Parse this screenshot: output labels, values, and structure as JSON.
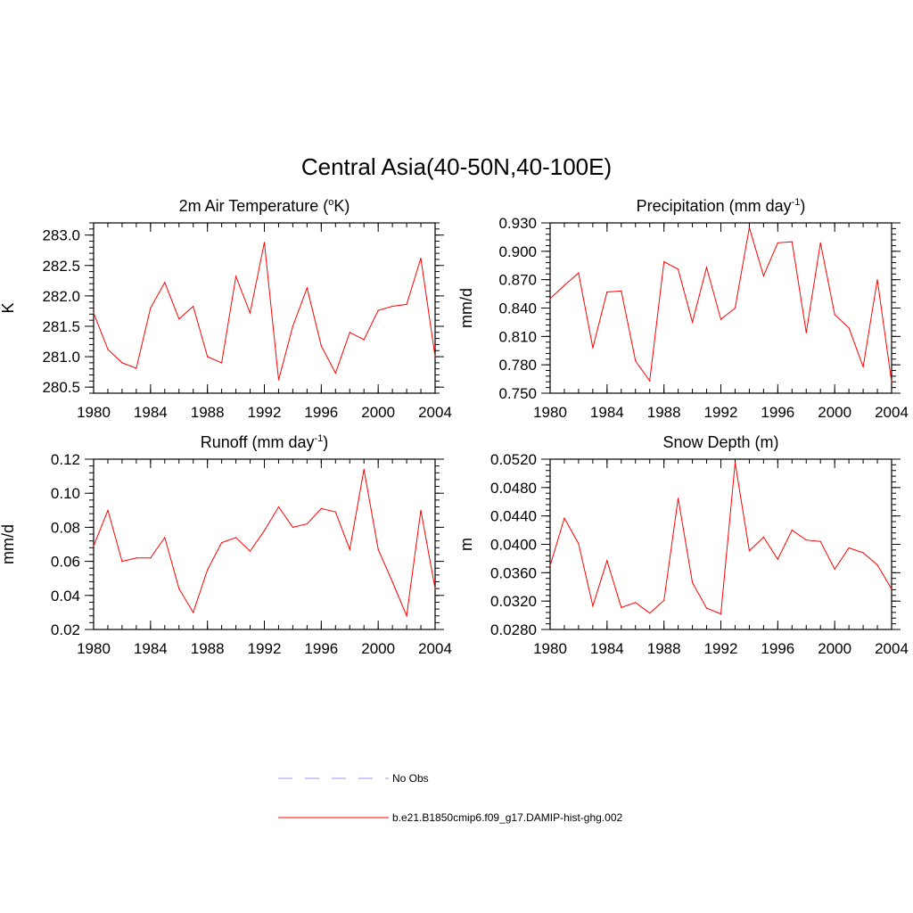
{
  "figure_title": "Central Asia(40-50N,40-100E)",
  "colors": {
    "model": "#ff0000",
    "obs": "#9999ff",
    "axis": "#000000"
  },
  "legend": [
    {
      "label": "No Obs",
      "style": "dashed",
      "color": "#9999ff"
    },
    {
      "label": "b.e21.B1850cmip6.f09_g17.DAMIP-hist-ghg.002",
      "style": "solid",
      "color": "#ff0000"
    }
  ],
  "chart_data": [
    {
      "type": "line",
      "title": "2m Air Temperature (",
      "title_sup": "o",
      "title_tail": "K)",
      "ylabel": "K",
      "xlim": [
        1980,
        2004
      ],
      "ylim": [
        280.4,
        283.2
      ],
      "xticks": [
        "1980",
        "1984",
        "1988",
        "1992",
        "1996",
        "2000",
        "2004"
      ],
      "yticks": [
        "280.5",
        "281.0",
        "281.5",
        "282.0",
        "282.5",
        "283.0"
      ],
      "minor_x": 1,
      "minor_y": 0.1,
      "series": [
        {
          "x": [
            1980,
            1981,
            1982,
            1983,
            1984,
            1985,
            1986,
            1987,
            1988,
            1989,
            1990,
            1991,
            1992,
            1993,
            1994,
            1995,
            1996,
            1997,
            1998,
            1999,
            2000,
            2001,
            2002,
            2003,
            2004
          ],
          "values": [
            281.72,
            281.12,
            280.9,
            280.81,
            281.8,
            282.22,
            281.62,
            281.83,
            281.0,
            280.9,
            282.32,
            281.72,
            282.88,
            280.62,
            281.5,
            282.13,
            281.18,
            280.73,
            281.4,
            281.28,
            281.76,
            281.83,
            281.86,
            282.62,
            281.0
          ]
        }
      ]
    },
    {
      "type": "line",
      "title": "Precipitation (mm day",
      "title_sup": "-1",
      "title_tail": ")",
      "ylabel": "mm/d",
      "xlim": [
        1980,
        2004
      ],
      "ylim": [
        0.75,
        0.93
      ],
      "xticks": [
        "1980",
        "1984",
        "1988",
        "1992",
        "1996",
        "2000",
        "2004"
      ],
      "yticks": [
        "0.750",
        "0.780",
        "0.810",
        "0.840",
        "0.870",
        "0.900",
        "0.930"
      ],
      "minor_x": 1,
      "minor_y": 0.006,
      "series": [
        {
          "x": [
            1980,
            1981,
            1982,
            1983,
            1984,
            1985,
            1986,
            1987,
            1988,
            1989,
            1990,
            1991,
            1992,
            1993,
            1994,
            1995,
            1996,
            1997,
            1998,
            1999,
            2000,
            2001,
            2002,
            2003,
            2004
          ],
          "values": [
            0.85,
            0.864,
            0.877,
            0.798,
            0.857,
            0.858,
            0.784,
            0.763,
            0.889,
            0.881,
            0.825,
            0.883,
            0.828,
            0.84,
            0.925,
            0.874,
            0.909,
            0.91,
            0.814,
            0.909,
            0.833,
            0.819,
            0.778,
            0.87,
            0.762
          ]
        }
      ]
    },
    {
      "type": "line",
      "title": "Runoff (mm day",
      "title_sup": "-1",
      "title_tail": ")",
      "ylabel": "mm/d",
      "xlim": [
        1980,
        2004
      ],
      "ylim": [
        0.02,
        0.12
      ],
      "xticks": [
        "1980",
        "1984",
        "1988",
        "1992",
        "1996",
        "2000",
        "2004"
      ],
      "yticks": [
        "0.02",
        "0.04",
        "0.06",
        "0.08",
        "0.10",
        "0.12"
      ],
      "minor_x": 1,
      "minor_y": 0.004,
      "series": [
        {
          "x": [
            1980,
            1981,
            1982,
            1983,
            1984,
            1985,
            1986,
            1987,
            1988,
            1989,
            1990,
            1991,
            1992,
            1993,
            1994,
            1995,
            1996,
            1997,
            1998,
            1999,
            2000,
            2001,
            2002,
            2003,
            2004
          ],
          "values": [
            0.069,
            0.09,
            0.06,
            0.062,
            0.062,
            0.074,
            0.044,
            0.03,
            0.055,
            0.071,
            0.074,
            0.066,
            0.078,
            0.092,
            0.08,
            0.082,
            0.091,
            0.089,
            0.067,
            0.114,
            0.067,
            0.048,
            0.028,
            0.09,
            0.044
          ]
        }
      ]
    },
    {
      "type": "line",
      "title": "Snow Depth (m)",
      "title_sup": "",
      "title_tail": "",
      "ylabel": "m",
      "xlim": [
        1980,
        2004
      ],
      "ylim": [
        0.028,
        0.052
      ],
      "xticks": [
        "1980",
        "1984",
        "1988",
        "1992",
        "1996",
        "2000",
        "2004"
      ],
      "yticks": [
        "0.0280",
        "0.0320",
        "0.0360",
        "0.0400",
        "0.0440",
        "0.0480",
        "0.0520"
      ],
      "minor_x": 1,
      "minor_y": 0.0008,
      "series": [
        {
          "x": [
            1980,
            1981,
            1982,
            1983,
            1984,
            1985,
            1986,
            1987,
            1988,
            1989,
            1990,
            1991,
            1992,
            1993,
            1994,
            1995,
            1996,
            1997,
            1998,
            1999,
            2000,
            2001,
            2002,
            2003,
            2004
          ],
          "values": [
            0.037,
            0.0437,
            0.0401,
            0.0313,
            0.0377,
            0.0311,
            0.0318,
            0.0303,
            0.0321,
            0.0465,
            0.0346,
            0.031,
            0.0302,
            0.0515,
            0.0391,
            0.041,
            0.0379,
            0.042,
            0.0406,
            0.0404,
            0.0365,
            0.0395,
            0.0388,
            0.0371,
            0.0337
          ]
        }
      ]
    }
  ]
}
